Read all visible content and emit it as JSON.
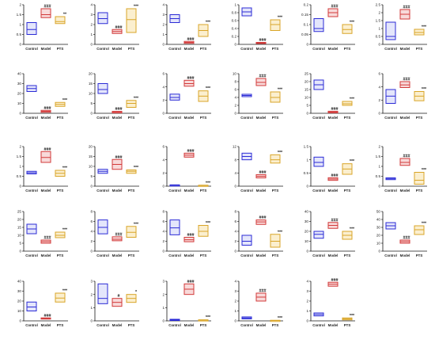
{
  "colors": {
    "Control": "#2b2bd6",
    "Model": "#d23a3a",
    "PTS": "#d9a528",
    "Control_fill": "#e4e6fb",
    "Model_fill": "#f8dada",
    "PTS_fill": "#fbefcf"
  },
  "chart_data": [
    {
      "type": "box",
      "ylabel": "",
      "ylim": [
        0,
        2
      ],
      "yticks": [
        0,
        0.5,
        1,
        1.5,
        2
      ],
      "categories": [
        "Control",
        "Model",
        "PTS"
      ],
      "boxes": [
        {
          "q1": 0.5,
          "median": 0.75,
          "q3": 1.1
        },
        {
          "q1": 1.35,
          "median": 1.5,
          "q3": 1.8
        },
        {
          "q1": 1.05,
          "median": 1.15,
          "q3": 1.4
        }
      ],
      "significance": [
        "",
        "###",
        "**"
      ]
    },
    {
      "type": "box",
      "ylabel": "",
      "ylim": [
        0,
        4
      ],
      "yticks": [
        0,
        1,
        2,
        3,
        4
      ],
      "categories": [
        "Control",
        "Model",
        "PTS"
      ],
      "boxes": [
        {
          "q1": 2.1,
          "median": 2.6,
          "q3": 3.2
        },
        {
          "q1": 1.1,
          "median": 1.3,
          "q3": 1.5
        },
        {
          "q1": 1.2,
          "median": 2.5,
          "q3": 3.6
        }
      ],
      "significance": [
        "",
        "###",
        "***"
      ]
    },
    {
      "type": "box",
      "ylabel": "",
      "ylim": [
        0,
        4
      ],
      "yticks": [
        0,
        1,
        2,
        3,
        4
      ],
      "categories": [
        "Control",
        "Model",
        "PTS"
      ],
      "boxes": [
        {
          "q1": 2.2,
          "median": 2.6,
          "q3": 3.0
        },
        {
          "q1": 0.1,
          "median": 0.2,
          "q3": 0.3
        },
        {
          "q1": 0.8,
          "median": 1.4,
          "q3": 2.0
        }
      ],
      "significance": [
        "",
        "###",
        "***"
      ]
    },
    {
      "type": "box",
      "ylabel": "",
      "ylim": [
        0,
        1
      ],
      "yticks": [
        0,
        0.2,
        0.4,
        0.6,
        0.8,
        1.0
      ],
      "categories": [
        "Control",
        "Model",
        "PTS"
      ],
      "boxes": [
        {
          "q1": 0.72,
          "median": 0.82,
          "q3": 0.92
        },
        {
          "q1": 0.02,
          "median": 0.03,
          "q3": 0.05
        },
        {
          "q1": 0.35,
          "median": 0.5,
          "q3": 0.62
        }
      ],
      "significance": [
        "",
        "###",
        "***"
      ]
    },
    {
      "type": "box",
      "ylabel": "",
      "ylim": [
        0,
        0.2
      ],
      "yticks": [
        0,
        0.05,
        0.1,
        0.15,
        0.2
      ],
      "categories": [
        "Control",
        "Model",
        "PTS"
      ],
      "boxes": [
        {
          "q1": 0.065,
          "median": 0.08,
          "q3": 0.13
        },
        {
          "q1": 0.14,
          "median": 0.16,
          "q3": 0.18
        },
        {
          "q1": 0.055,
          "median": 0.075,
          "q3": 0.1
        }
      ],
      "significance": [
        "",
        "###",
        "***"
      ]
    },
    {
      "type": "box",
      "ylabel": "",
      "ylim": [
        0,
        2.5
      ],
      "yticks": [
        0,
        0.5,
        1,
        1.5,
        2,
        2.5
      ],
      "categories": [
        "Control",
        "Model",
        "PTS"
      ],
      "boxes": [
        {
          "q1": 0.3,
          "median": 0.5,
          "q3": 1.4
        },
        {
          "q1": 1.6,
          "median": 1.9,
          "q3": 2.2
        },
        {
          "q1": 0.6,
          "median": 0.75,
          "q3": 0.95
        }
      ],
      "significance": [
        "",
        "###",
        "***"
      ]
    },
    {
      "type": "box",
      "ylabel": "",
      "ylim": [
        0,
        40
      ],
      "yticks": [
        0,
        10,
        20,
        30,
        40
      ],
      "categories": [
        "Control",
        "Model",
        "PTS"
      ],
      "boxes": [
        {
          "q1": 22,
          "median": 25,
          "q3": 28
        },
        {
          "q1": 1,
          "median": 2,
          "q3": 3
        },
        {
          "q1": 7,
          "median": 9,
          "q3": 11
        }
      ],
      "significance": [
        "",
        "###",
        "***"
      ]
    },
    {
      "type": "box",
      "ylabel": "",
      "ylim": [
        0,
        20
      ],
      "yticks": [
        0,
        5,
        10,
        15,
        20
      ],
      "categories": [
        "Control",
        "Model",
        "PTS"
      ],
      "boxes": [
        {
          "q1": 10,
          "median": 12,
          "q3": 15
        },
        {
          "q1": 0.2,
          "median": 0.5,
          "q3": 1
        },
        {
          "q1": 3,
          "median": 5,
          "q3": 6.5
        }
      ],
      "significance": [
        "",
        "###",
        "***"
      ]
    },
    {
      "type": "box",
      "ylabel": "",
      "ylim": [
        0,
        6
      ],
      "yticks": [
        0,
        2,
        4,
        6
      ],
      "categories": [
        "Control",
        "Model",
        "PTS"
      ],
      "boxes": [
        {
          "q1": 2.0,
          "median": 2.4,
          "q3": 2.9
        },
        {
          "q1": 4.1,
          "median": 4.5,
          "q3": 5.0
        },
        {
          "q1": 1.8,
          "median": 2.6,
          "q3": 3.4
        }
      ],
      "significance": [
        "",
        "###",
        "***"
      ]
    },
    {
      "type": "box",
      "ylabel": "",
      "ylim": [
        0,
        10
      ],
      "yticks": [
        0,
        2,
        4,
        6,
        8,
        10
      ],
      "categories": [
        "Control",
        "Model",
        "PTS"
      ],
      "boxes": [
        {
          "q1": 4.2,
          "median": 4.5,
          "q3": 4.8
        },
        {
          "q1": 7,
          "median": 7.8,
          "q3": 8.8
        },
        {
          "q1": 2.8,
          "median": 4,
          "q3": 5.4
        }
      ],
      "significance": [
        "",
        "###",
        "***"
      ]
    },
    {
      "type": "box",
      "ylabel": "",
      "ylim": [
        0,
        25
      ],
      "yticks": [
        0,
        5,
        10,
        15,
        20,
        25
      ],
      "categories": [
        "Control",
        "Model",
        "PTS"
      ],
      "boxes": [
        {
          "q1": 15,
          "median": 18,
          "q3": 21
        },
        {
          "q1": 0.3,
          "median": 0.8,
          "q3": 1.3
        },
        {
          "q1": 5,
          "median": 6,
          "q3": 7.5
        }
      ],
      "significance": [
        "",
        "###",
        "***"
      ]
    },
    {
      "type": "box",
      "ylabel": "",
      "ylim": [
        0,
        6
      ],
      "yticks": [
        0,
        2,
        4,
        6
      ],
      "categories": [
        "Control",
        "Model",
        "PTS"
      ],
      "boxes": [
        {
          "q1": 1.5,
          "median": 2.6,
          "q3": 3.6
        },
        {
          "q1": 3.9,
          "median": 4.3,
          "q3": 4.8
        },
        {
          "q1": 1.9,
          "median": 2.6,
          "q3": 3.3
        }
      ],
      "significance": [
        "",
        "###",
        "***"
      ]
    },
    {
      "type": "box",
      "ylabel": "",
      "ylim": [
        0,
        2
      ],
      "yticks": [
        0,
        0.5,
        1,
        1.5,
        2
      ],
      "categories": [
        "Control",
        "Model",
        "PTS"
      ],
      "boxes": [
        {
          "q1": 0.62,
          "median": 0.68,
          "q3": 0.75
        },
        {
          "q1": 1.2,
          "median": 1.45,
          "q3": 1.75
        },
        {
          "q1": 0.5,
          "median": 0.65,
          "q3": 0.8
        }
      ],
      "significance": [
        "",
        "###",
        "***"
      ]
    },
    {
      "type": "box",
      "ylabel": "",
      "ylim": [
        0,
        20
      ],
      "yticks": [
        0,
        5,
        10,
        15,
        20
      ],
      "categories": [
        "Control",
        "Model",
        "PTS"
      ],
      "boxes": [
        {
          "q1": 6.5,
          "median": 7.5,
          "q3": 8.5
        },
        {
          "q1": 8.5,
          "median": 11,
          "q3": 13.5
        },
        {
          "q1": 6.5,
          "median": 7.5,
          "q3": 8.2
        }
      ],
      "significance": [
        "",
        "###",
        "***"
      ]
    },
    {
      "type": "box",
      "ylabel": "",
      "ylim": [
        0,
        6
      ],
      "yticks": [
        0,
        2,
        4,
        6
      ],
      "categories": [
        "Control",
        "Model",
        "PTS"
      ],
      "boxes": [
        {
          "q1": 0.1,
          "median": 0.15,
          "q3": 0.2
        },
        {
          "q1": 4.4,
          "median": 4.7,
          "q3": 5.0
        },
        {
          "q1": 0.05,
          "median": 0.1,
          "q3": 0.15
        }
      ],
      "significance": [
        "",
        "###",
        "***"
      ]
    },
    {
      "type": "box",
      "ylabel": "",
      "ylim": [
        0,
        12
      ],
      "yticks": [
        0,
        4,
        8,
        12
      ],
      "categories": [
        "Control",
        "Model",
        "PTS"
      ],
      "boxes": [
        {
          "q1": 8,
          "median": 9,
          "q3": 10
        },
        {
          "q1": 2.5,
          "median": 3,
          "q3": 3.5
        },
        {
          "q1": 7,
          "median": 8,
          "q3": 9.5
        }
      ],
      "significance": [
        "",
        "###",
        "***"
      ]
    },
    {
      "type": "box",
      "ylabel": "",
      "ylim": [
        0,
        1.5
      ],
      "yticks": [
        0,
        0.5,
        1,
        1.5
      ],
      "categories": [
        "Control",
        "Model",
        "PTS"
      ],
      "boxes": [
        {
          "q1": 0.75,
          "median": 0.9,
          "q3": 1.1
        },
        {
          "q1": 0.22,
          "median": 0.27,
          "q3": 0.32
        },
        {
          "q1": 0.45,
          "median": 0.65,
          "q3": 0.85
        }
      ],
      "significance": [
        "",
        "###",
        "***"
      ]
    },
    {
      "type": "box",
      "ylabel": "",
      "ylim": [
        0,
        2
      ],
      "yticks": [
        0,
        0.5,
        1,
        1.5,
        2
      ],
      "categories": [
        "Control",
        "Model",
        "PTS"
      ],
      "boxes": [
        {
          "q1": 0.33,
          "median": 0.37,
          "q3": 0.42
        },
        {
          "q1": 1.05,
          "median": 1.2,
          "q3": 1.4
        },
        {
          "q1": 0.1,
          "median": 0.3,
          "q3": 0.7
        }
      ],
      "significance": [
        "",
        "###",
        "***"
      ]
    },
    {
      "type": "box",
      "ylabel": "",
      "ylim": [
        0,
        25
      ],
      "yticks": [
        0,
        5,
        10,
        15,
        20,
        25
      ],
      "categories": [
        "Control",
        "Model",
        "PTS"
      ],
      "boxes": [
        {
          "q1": 11,
          "median": 14,
          "q3": 17
        },
        {
          "q1": 5,
          "median": 6,
          "q3": 7
        },
        {
          "q1": 8.5,
          "median": 10,
          "q3": 12
        }
      ],
      "significance": [
        "",
        "###",
        "***"
      ]
    },
    {
      "type": "box",
      "ylabel": "",
      "ylim": [
        0,
        8
      ],
      "yticks": [
        0,
        2,
        4,
        6,
        8
      ],
      "categories": [
        "Control",
        "Model",
        "PTS"
      ],
      "boxes": [
        {
          "q1": 3.5,
          "median": 4.8,
          "q3": 6.3
        },
        {
          "q1": 2.1,
          "median": 2.4,
          "q3": 2.9
        },
        {
          "q1": 2.8,
          "median": 3.8,
          "q3": 5.0
        }
      ],
      "significance": [
        "",
        "###",
        "***"
      ]
    },
    {
      "type": "box",
      "ylabel": "",
      "ylim": [
        0,
        8
      ],
      "yticks": [
        0,
        2,
        4,
        6,
        8
      ],
      "categories": [
        "Control",
        "Model",
        "PTS"
      ],
      "boxes": [
        {
          "q1": 3.3,
          "median": 4.7,
          "q3": 6.3
        },
        {
          "q1": 1.9,
          "median": 2.3,
          "q3": 2.8
        },
        {
          "q1": 3.0,
          "median": 4,
          "q3": 5.2
        }
      ],
      "significance": [
        "",
        "###",
        "***"
      ]
    },
    {
      "type": "box",
      "ylabel": "",
      "ylim": [
        0,
        8
      ],
      "yticks": [
        0,
        2,
        4,
        6,
        8
      ],
      "categories": [
        "Control",
        "Model",
        "PTS"
      ],
      "boxes": [
        {
          "q1": 1.2,
          "median": 2,
          "q3": 3.2
        },
        {
          "q1": 5.4,
          "median": 5.9,
          "q3": 6.3
        },
        {
          "q1": 0.8,
          "median": 2,
          "q3": 3.4
        }
      ],
      "significance": [
        "",
        "###",
        "***"
      ]
    },
    {
      "type": "box",
      "ylabel": "",
      "ylim": [
        0,
        40
      ],
      "yticks": [
        0,
        10,
        20,
        30,
        40
      ],
      "categories": [
        "Control",
        "Model",
        "PTS"
      ],
      "boxes": [
        {
          "q1": 13,
          "median": 17,
          "q3": 20
        },
        {
          "q1": 23,
          "median": 26,
          "q3": 29
        },
        {
          "q1": 12,
          "median": 16,
          "q3": 20
        }
      ],
      "significance": [
        "",
        "###",
        "***"
      ]
    },
    {
      "type": "box",
      "ylabel": "",
      "ylim": [
        0,
        50
      ],
      "yticks": [
        0,
        10,
        20,
        30,
        40,
        50
      ],
      "categories": [
        "Control",
        "Model",
        "PTS"
      ],
      "boxes": [
        {
          "q1": 28,
          "median": 32,
          "q3": 36
        },
        {
          "q1": 10,
          "median": 12,
          "q3": 14
        },
        {
          "q1": 21,
          "median": 27,
          "q3": 32
        }
      ],
      "significance": [
        "",
        "###",
        "***"
      ]
    },
    {
      "type": "box",
      "ylabel": "",
      "ylim": [
        0,
        40
      ],
      "yticks": [
        0,
        10,
        20,
        30,
        40
      ],
      "categories": [
        "Control",
        "Model",
        "PTS"
      ],
      "boxes": [
        {
          "q1": 10,
          "median": 14,
          "q3": 19
        },
        {
          "q1": 2,
          "median": 2.5,
          "q3": 3
        },
        {
          "q1": 19,
          "median": 23,
          "q3": 28
        }
      ],
      "significance": [
        "",
        "###",
        "***"
      ]
    },
    {
      "type": "box",
      "ylabel": "",
      "ylim": [
        0,
        3
      ],
      "yticks": [
        0,
        1,
        2,
        3
      ],
      "categories": [
        "Control",
        "Model",
        "PTS"
      ],
      "boxes": [
        {
          "q1": 1.3,
          "median": 1.7,
          "q3": 2.8
        },
        {
          "q1": 1.1,
          "median": 1.4,
          "q3": 1.7
        },
        {
          "q1": 1.4,
          "median": 1.7,
          "q3": 2.0
        }
      ],
      "significance": [
        "",
        "#",
        "*"
      ]
    },
    {
      "type": "box",
      "ylabel": "",
      "ylim": [
        0,
        3
      ],
      "yticks": [
        0,
        1,
        2,
        3
      ],
      "categories": [
        "Control",
        "Model",
        "PTS"
      ],
      "boxes": [
        {
          "q1": 0.05,
          "median": 0.08,
          "q3": 0.12
        },
        {
          "q1": 2.0,
          "median": 2.4,
          "q3": 2.8
        },
        {
          "q1": 0.02,
          "median": 0.05,
          "q3": 0.08
        }
      ],
      "significance": [
        "",
        "###",
        "***"
      ]
    },
    {
      "type": "box",
      "ylabel": "",
      "ylim": [
        0,
        4
      ],
      "yticks": [
        0,
        1,
        2,
        3,
        4
      ],
      "categories": [
        "Control",
        "Model",
        "PTS"
      ],
      "boxes": [
        {
          "q1": 0.2,
          "median": 0.3,
          "q3": 0.4
        },
        {
          "q1": 2.0,
          "median": 2.4,
          "q3": 2.8
        },
        {
          "q1": 0.02,
          "median": 0.04,
          "q3": 0.06
        }
      ],
      "significance": [
        "",
        "###",
        "***"
      ]
    },
    {
      "type": "box",
      "ylabel": "",
      "ylim": [
        0,
        4
      ],
      "yticks": [
        0,
        1,
        2,
        3,
        4
      ],
      "categories": [
        "Control",
        "Model",
        "PTS"
      ],
      "boxes": [
        {
          "q1": 0.5,
          "median": 0.65,
          "q3": 0.8
        },
        {
          "q1": 3.5,
          "median": 3.7,
          "q3": 3.9
        },
        {
          "q1": 0.1,
          "median": 0.2,
          "q3": 0.3
        }
      ],
      "significance": [
        "",
        "###",
        "***"
      ]
    }
  ]
}
